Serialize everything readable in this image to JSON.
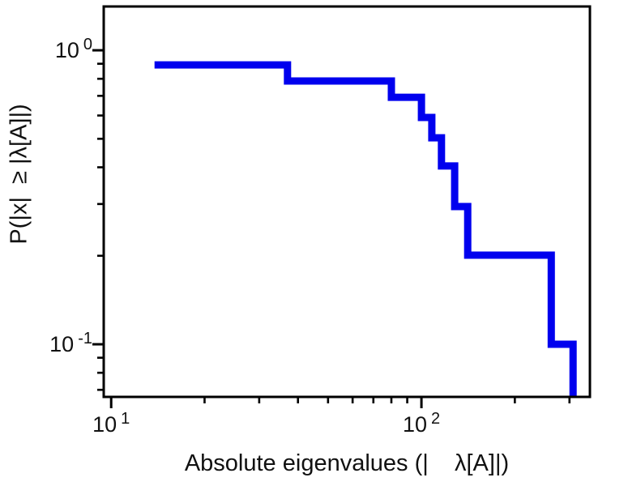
{
  "chart_data": {
    "type": "line",
    "subtype": "log-log step survival function (CCDF)",
    "title": "",
    "xlabel": "Absolute eigenvalues (|    λ[A]|)",
    "ylabel": "P(|x|  ≥ |λ[A]|)",
    "xscale": "log",
    "yscale": "log",
    "grid": false,
    "legend": "none",
    "x_log_range": [
      0.976,
      2.543
    ],
    "y_log_range": [
      -1.179,
      0.149
    ],
    "x_major_ticks": [
      10,
      100
    ],
    "y_major_ticks": [
      1,
      0.1
    ],
    "x_tick_labels": [
      {
        "base": "10",
        "exp": "1",
        "value": 10
      },
      {
        "base": "10",
        "exp": "2",
        "value": 100
      }
    ],
    "y_tick_labels": [
      {
        "base": "10",
        "exp": "0",
        "value": 1
      },
      {
        "base": "10",
        "exp": "-1",
        "value": 0.1
      }
    ],
    "line_color": "#0000ee",
    "line_width": 9,
    "frame_color": "#000000",
    "eigenvalues_abs": [
      13.8,
      37,
      80,
      100,
      108,
      116,
      128,
      141,
      262,
      308
    ],
    "ccdf_levels": [
      0.89,
      0.79,
      0.69,
      0.59,
      0.5,
      0.4,
      0.29,
      0.2,
      0.1
    ],
    "points": [
      [
        13.8,
        0.892
      ],
      [
        37,
        0.892
      ],
      [
        37,
        0.786
      ],
      [
        80,
        0.786
      ],
      [
        80,
        0.692
      ],
      [
        100,
        0.692
      ],
      [
        100,
        0.591
      ],
      [
        108,
        0.591
      ],
      [
        108,
        0.504
      ],
      [
        116,
        0.504
      ],
      [
        116,
        0.404
      ],
      [
        128,
        0.404
      ],
      [
        128,
        0.294
      ],
      [
        141,
        0.294
      ],
      [
        141,
        0.201
      ],
      [
        262,
        0.201
      ],
      [
        262,
        0.1
      ],
      [
        308,
        0.1
      ],
      [
        308,
        0.052
      ]
    ]
  }
}
